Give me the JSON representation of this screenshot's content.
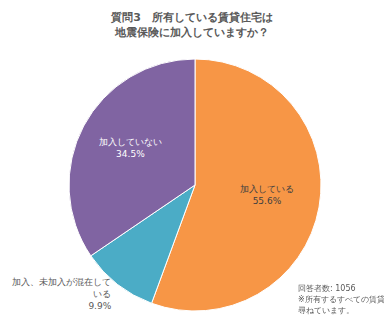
{
  "chart_data": {
    "type": "pie",
    "title": "質問3　所有している賃貸住宅は\n地震保険に加入していますか？",
    "categories": [
      "加入している",
      "加入、未加入が混在している",
      "加入していない"
    ],
    "values": [
      55.6,
      9.9,
      34.5
    ],
    "value_labels": [
      "55.6%",
      "9.9%",
      "34.5%"
    ],
    "colors": [
      "#f79646",
      "#4bacc6",
      "#8064a2"
    ],
    "data_labels": true,
    "annotations": [
      "回答者数: 1056",
      "※所有するすべての賃貸住宅について尋ねています。"
    ]
  }
}
